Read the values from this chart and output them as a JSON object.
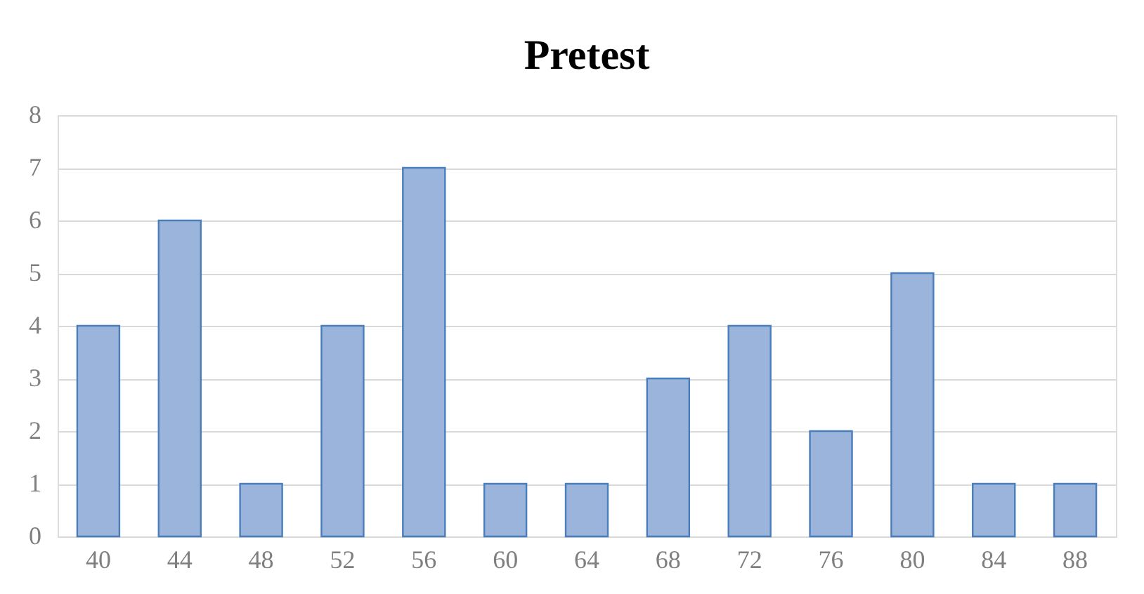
{
  "chart_data": {
    "type": "bar",
    "title": "Pretest",
    "categories": [
      "40",
      "44",
      "48",
      "52",
      "56",
      "60",
      "64",
      "68",
      "72",
      "76",
      "80",
      "84",
      "88"
    ],
    "values": [
      4,
      6,
      1,
      4,
      7,
      1,
      1,
      3,
      4,
      2,
      5,
      1,
      1
    ],
    "color": "#9bb4dc",
    "ylim": [
      0,
      8
    ],
    "yticks": [
      0,
      1,
      2,
      3,
      4,
      5,
      6,
      7,
      8
    ],
    "grid": "y"
  }
}
